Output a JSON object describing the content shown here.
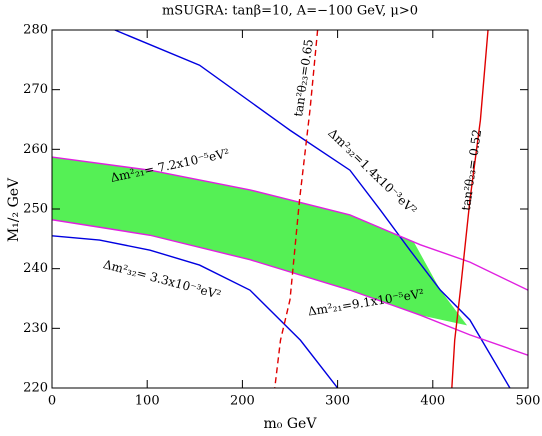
{
  "chart_data": {
    "type": "line",
    "title": "mSUGRA: tanβ=10, A=−100 GeV, μ>0",
    "x_label": "m₀ GeV",
    "y_label": "M₁/₂ GeV",
    "xlim": [
      0,
      500
    ],
    "ylim": [
      220,
      280
    ],
    "xticks": [
      0,
      100,
      200,
      300,
      400,
      500
    ],
    "yticks": [
      220,
      230,
      240,
      250,
      260,
      270,
      280
    ],
    "region": {
      "color": "#55f055",
      "x": [
        0,
        103,
        208,
        313,
        380,
        408,
        436,
        387,
        313,
        208,
        103,
        0
      ],
      "values": [
        258.7,
        256.5,
        253.2,
        249,
        244.5,
        236.4,
        230.5,
        232.2,
        236.4,
        241.5,
        245.6,
        248.2
      ]
    },
    "series": [
      {
        "color": "#0000e0",
        "dash": false,
        "x": [
          66,
          155,
          250,
          313,
          345,
          376,
          408,
          439,
          481
        ],
        "values": [
          280,
          274.1,
          263.2,
          256.5,
          249.8,
          243.1,
          236.4,
          231.4,
          220
        ]
      },
      {
        "color": "#0000e0",
        "dash": false,
        "x": [
          0,
          50,
          103,
          155,
          208,
          261,
          300
        ],
        "values": [
          245.5,
          244.8,
          243.1,
          240.6,
          236.4,
          228,
          220
        ]
      },
      {
        "color": "#e020e0",
        "dash": false,
        "x": [
          0,
          103,
          208,
          313,
          387,
          439,
          500
        ],
        "values": [
          258.7,
          256.5,
          253.2,
          249,
          244,
          241.1,
          236.4
        ]
      },
      {
        "color": "#e020e0",
        "dash": false,
        "x": [
          0,
          103,
          208,
          313,
          387,
          439,
          500
        ],
        "values": [
          248.2,
          245.6,
          241.5,
          236.4,
          232.2,
          228.9,
          225.5
        ]
      },
      {
        "color": "#e00000",
        "dash": true,
        "x": [
          279,
          271,
          260,
          250,
          245,
          240,
          234
        ],
        "values": [
          280,
          266.6,
          251.5,
          234.8,
          231.4,
          228,
          220
        ]
      },
      {
        "color": "#e00000",
        "dash": false,
        "x": [
          458,
          450,
          439,
          429,
          423,
          420
        ],
        "values": [
          280,
          264.9,
          251.5,
          236.4,
          228,
          220
        ]
      }
    ],
    "annotations": [
      "Δm²₂₁= 7.2x10⁻⁵eV²",
      "Δm²₃₂=1.4x10⁻³eV²",
      "Δm²₃₂= 3.3x10⁻³eV²",
      "Δm²₂₁=9.1x10⁻⁵eV²",
      "tan²θ₂₃=0.65",
      "tan²θ₂₃= 0.52"
    ]
  }
}
